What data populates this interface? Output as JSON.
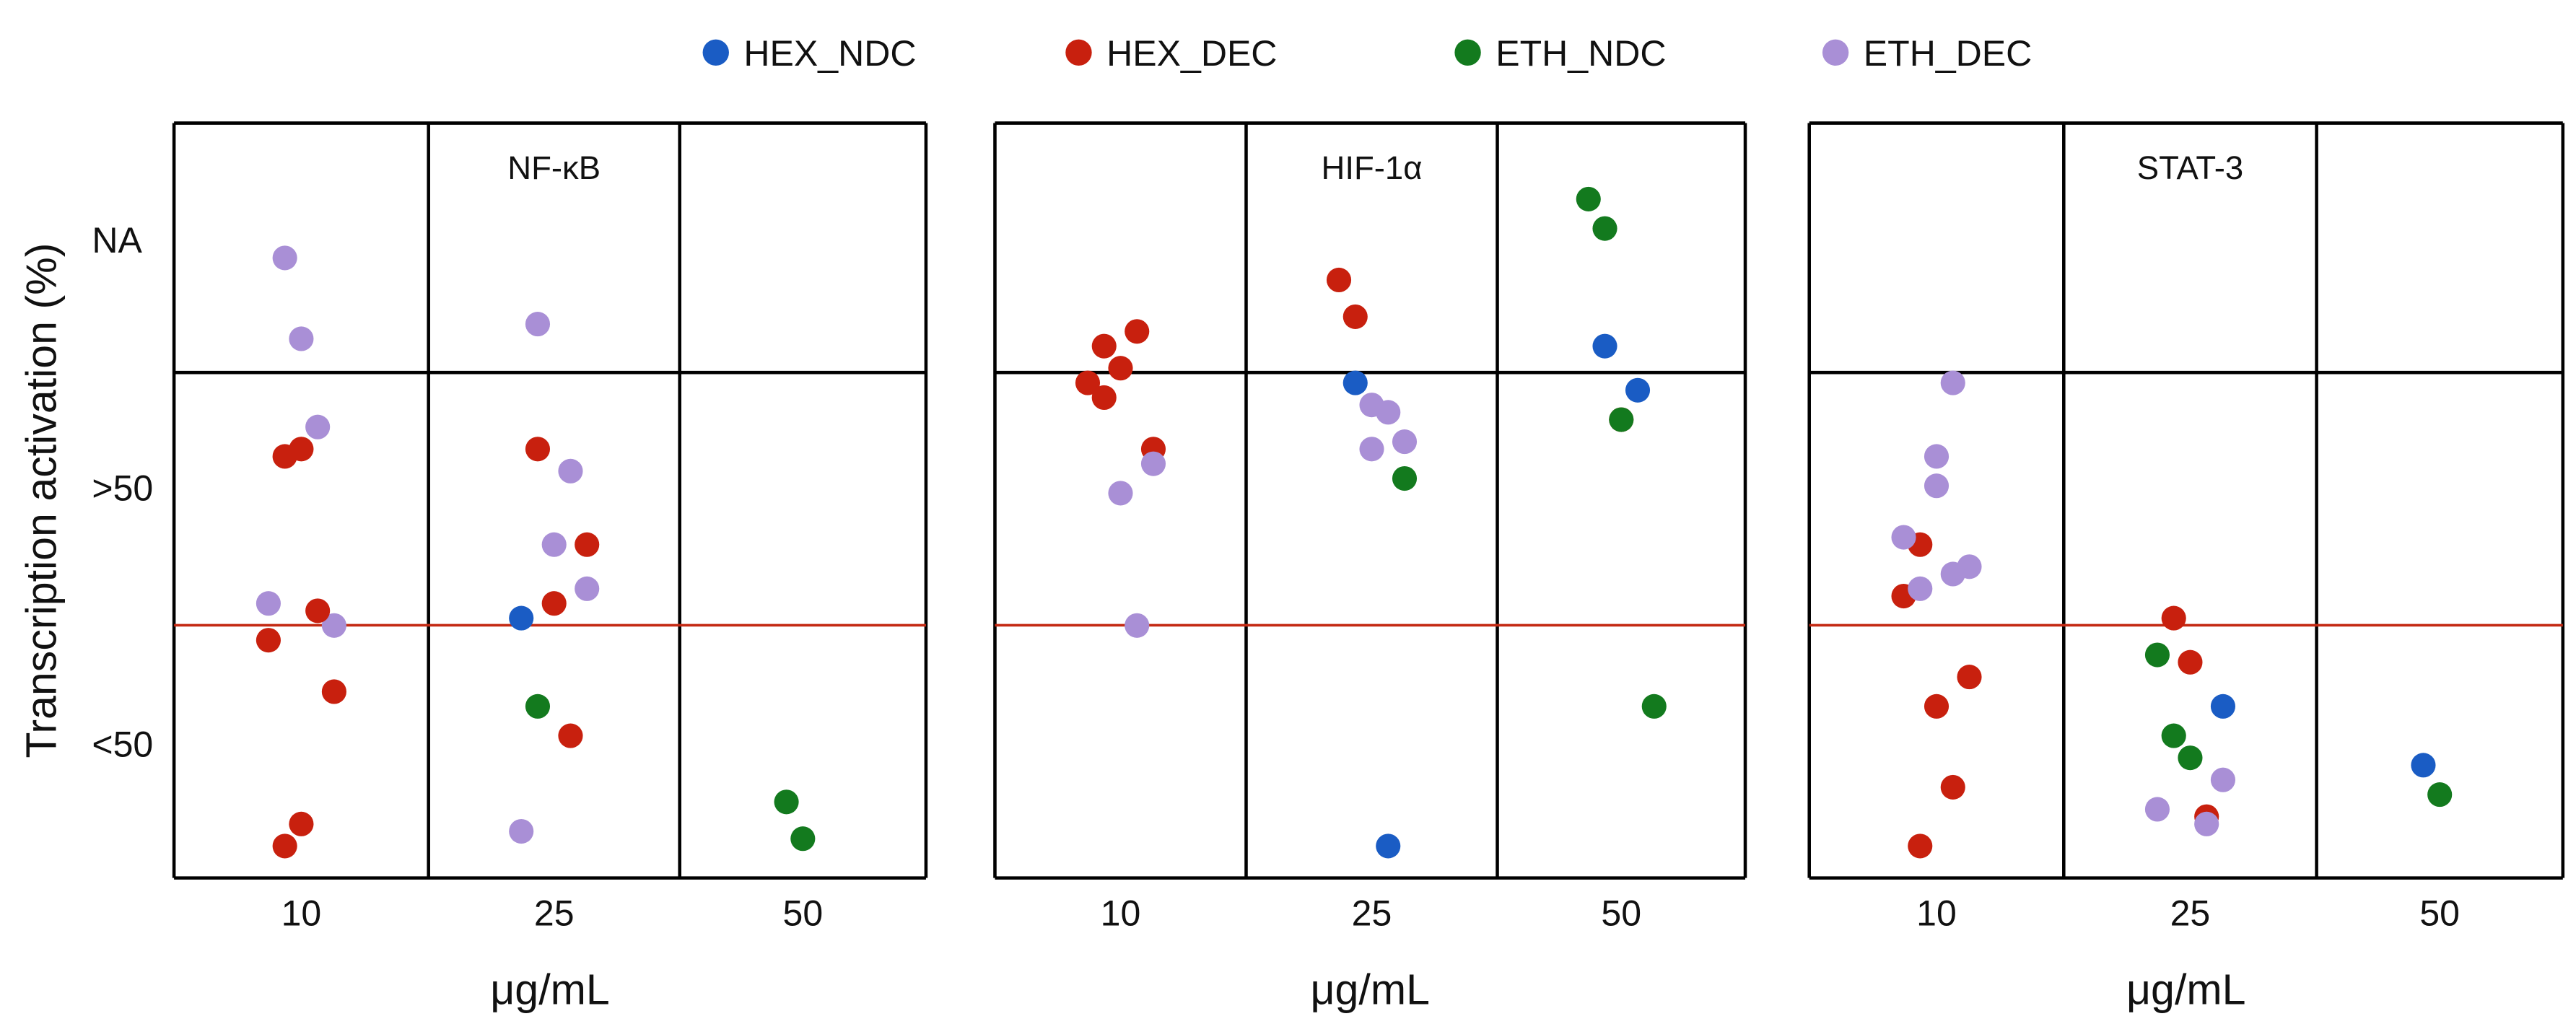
{
  "chart_data": {
    "type": "scatter",
    "ylabel": "Transcription activation (%)",
    "y_categories": [
      "NA",
      ">50",
      "<50"
    ],
    "legend": [
      {
        "key": "HEX_NDC",
        "label": "HEX_NDC",
        "color": "#1a5cc4"
      },
      {
        "key": "HEX_DEC",
        "label": "HEX_DEC",
        "color": "#c8200e"
      },
      {
        "key": "ETH_NDC",
        "label": "ETH_NDC",
        "color": "#137a1e"
      },
      {
        "key": "ETH_DEC",
        "label": "ETH_DEC",
        "color": "#a98fd6"
      }
    ],
    "colors": {
      "grid": "#000000",
      "threshold": "#c42a14"
    },
    "panels": [
      {
        "title": "NF-κB",
        "xlabel": "μg/mL",
        "categories": [
          "10",
          "25",
          "50"
        ],
        "points": [
          {
            "series": "ETH_DEC",
            "x": "10",
            "value": 83
          },
          {
            "series": "ETH_DEC",
            "x": "10",
            "value": 72
          },
          {
            "series": "ETH_DEC",
            "x": "10",
            "value": 60
          },
          {
            "series": "ETH_DEC",
            "x": "10",
            "value": 33
          },
          {
            "series": "ETH_DEC",
            "x": "10",
            "value": 36
          },
          {
            "series": "HEX_DEC",
            "x": "10",
            "value": 56
          },
          {
            "series": "HEX_DEC",
            "x": "10",
            "value": 57
          },
          {
            "series": "HEX_DEC",
            "x": "10",
            "value": 35
          },
          {
            "series": "HEX_DEC",
            "x": "10",
            "value": 24
          },
          {
            "series": "HEX_DEC",
            "x": "10",
            "value": 31
          },
          {
            "series": "HEX_DEC",
            "x": "10",
            "value": 3
          },
          {
            "series": "HEX_DEC",
            "x": "10",
            "value": 6
          },
          {
            "series": "ETH_DEC",
            "x": "25",
            "value": 74
          },
          {
            "series": "ETH_DEC",
            "x": "25",
            "value": 44
          },
          {
            "series": "ETH_DEC",
            "x": "25",
            "value": 54
          },
          {
            "series": "ETH_DEC",
            "x": "25",
            "value": 38
          },
          {
            "series": "ETH_DEC",
            "x": "25",
            "value": 5
          },
          {
            "series": "HEX_DEC",
            "x": "25",
            "value": 57
          },
          {
            "series": "HEX_DEC",
            "x": "25",
            "value": 36
          },
          {
            "series": "HEX_DEC",
            "x": "25",
            "value": 18
          },
          {
            "series": "HEX_DEC",
            "x": "25",
            "value": 44
          },
          {
            "series": "HEX_NDC",
            "x": "25",
            "value": 34
          },
          {
            "series": "ETH_NDC",
            "x": "25",
            "value": 22
          },
          {
            "series": "ETH_NDC",
            "x": "50",
            "value": 9
          },
          {
            "series": "ETH_NDC",
            "x": "50",
            "value": 4
          }
        ]
      },
      {
        "title": "HIF-1α",
        "xlabel": "μg/mL",
        "categories": [
          "10",
          "25",
          "50"
        ],
        "points": [
          {
            "series": "HEX_DEC",
            "x": "10",
            "value": 64
          },
          {
            "series": "HEX_DEC",
            "x": "10",
            "value": 68
          },
          {
            "series": "HEX_DEC",
            "x": "10",
            "value": 73
          },
          {
            "series": "HEX_DEC",
            "x": "10",
            "value": 57
          },
          {
            "series": "HEX_DEC",
            "x": "10",
            "value": 66
          },
          {
            "series": "HEX_DEC",
            "x": "10",
            "value": 71
          },
          {
            "series": "ETH_DEC",
            "x": "10",
            "value": 51
          },
          {
            "series": "ETH_DEC",
            "x": "10",
            "value": 33
          },
          {
            "series": "ETH_DEC",
            "x": "10",
            "value": 55
          },
          {
            "series": "HEX_NDC",
            "x": "25",
            "value": 66
          },
          {
            "series": "ETH_DEC",
            "x": "25",
            "value": 57
          },
          {
            "series": "HEX_NDC",
            "x": "25",
            "value": 3
          },
          {
            "series": "ETH_NDC",
            "x": "25",
            "value": 53
          },
          {
            "series": "HEX_DEC",
            "x": "25",
            "value": 80
          },
          {
            "series": "HEX_DEC",
            "x": "25",
            "value": 75
          },
          {
            "series": "ETH_DEC",
            "x": "25",
            "value": 63
          },
          {
            "series": "ETH_DEC",
            "x": "25",
            "value": 62
          },
          {
            "series": "ETH_DEC",
            "x": "25",
            "value": 58
          },
          {
            "series": "HEX_NDC",
            "x": "50",
            "value": 71
          },
          {
            "series": "HEX_DEC",
            "x": "50",
            "value": 61
          },
          {
            "series": "HEX_NDC",
            "x": "50",
            "value": 65
          },
          {
            "series": "ETH_NDC",
            "x": "50",
            "value": 22
          },
          {
            "series": "ETH_NDC",
            "x": "50",
            "value": 91
          },
          {
            "series": "ETH_NDC",
            "x": "50",
            "value": 87
          },
          {
            "series": "ETH_NDC",
            "x": "50",
            "value": 61
          }
        ]
      },
      {
        "title": "STAT-3",
        "xlabel": "μg/mL",
        "categories": [
          "10",
          "25",
          "50"
        ],
        "points": [
          {
            "series": "HEX_DEC",
            "x": "10",
            "value": 3
          },
          {
            "series": "HEX_DEC",
            "x": "10",
            "value": 22
          },
          {
            "series": "HEX_DEC",
            "x": "10",
            "value": 11
          },
          {
            "series": "HEX_DEC",
            "x": "10",
            "value": 26
          },
          {
            "series": "HEX_DEC",
            "x": "10",
            "value": 37
          },
          {
            "series": "HEX_DEC",
            "x": "10",
            "value": 44
          },
          {
            "series": "ETH_DEC",
            "x": "10",
            "value": 56
          },
          {
            "series": "ETH_DEC",
            "x": "10",
            "value": 66
          },
          {
            "series": "ETH_DEC",
            "x": "10",
            "value": 41
          },
          {
            "series": "ETH_DEC",
            "x": "10",
            "value": 45
          },
          {
            "series": "ETH_DEC",
            "x": "10",
            "value": 38
          },
          {
            "series": "ETH_DEC",
            "x": "10",
            "value": 52
          },
          {
            "series": "ETH_DEC",
            "x": "10",
            "value": 40
          },
          {
            "series": "HEX_DEC",
            "x": "25",
            "value": 34
          },
          {
            "series": "HEX_DEC",
            "x": "25",
            "value": 28
          },
          {
            "series": "HEX_DEC",
            "x": "25",
            "value": 7
          },
          {
            "series": "HEX_NDC",
            "x": "25",
            "value": 22
          },
          {
            "series": "ETH_NDC",
            "x": "25",
            "value": 29
          },
          {
            "series": "ETH_NDC",
            "x": "25",
            "value": 18
          },
          {
            "series": "ETH_NDC",
            "x": "25",
            "value": 15
          },
          {
            "series": "ETH_DEC",
            "x": "25",
            "value": 6
          },
          {
            "series": "ETH_DEC",
            "x": "25",
            "value": 12
          },
          {
            "series": "ETH_DEC",
            "x": "25",
            "value": 8
          },
          {
            "series": "HEX_NDC",
            "x": "50",
            "value": 14
          },
          {
            "series": "ETH_NDC",
            "x": "50",
            "value": 10
          }
        ]
      }
    ]
  }
}
